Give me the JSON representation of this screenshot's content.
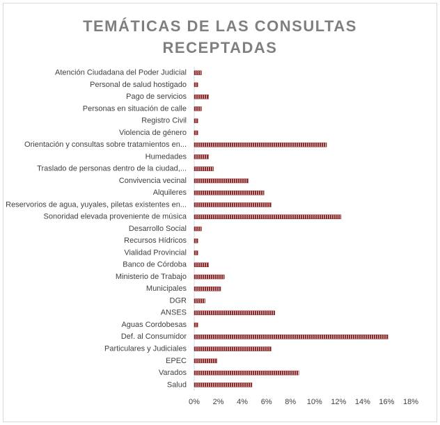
{
  "chart_data": {
    "type": "bar",
    "orientation": "horizontal",
    "title": "TEMÁTICAS DE LAS CONSULTAS RECEPTADAS",
    "categories": [
      "Atención Ciudadana del Poder Judicial",
      "Personal de salud hostigado",
      "Pago de servicios",
      "Personas en situación de calle",
      "Registro Civil",
      "Violencia de género",
      "Orientación y consultas sobre tratamientos en...",
      "Humedades",
      "Traslado de personas dentro de la ciudad,...",
      "Convivencia vecinal",
      "Alquileres",
      "Reservorios de agua, yuyales, piletas existentes en...",
      "Sonoridad elevada proveniente de música",
      "Desarrollo Social",
      "Recursos Hídricos",
      "Vialidad Provincial",
      "Banco de Córdoba",
      "Ministerio de Trabajo",
      "Municipales",
      "DGR",
      "ANSES",
      "Aguas Cordobesas",
      "Def. al Consumidor",
      "Particulares y Judiciales",
      "EPEC",
      "Varados",
      "Salud"
    ],
    "values": [
      0.6,
      0.3,
      1.2,
      0.6,
      0.3,
      0.3,
      11.0,
      1.2,
      1.6,
      4.5,
      5.8,
      6.4,
      12.2,
      0.6,
      0.3,
      0.3,
      1.2,
      2.5,
      2.2,
      0.9,
      6.7,
      0.3,
      16.1,
      6.4,
      1.9,
      8.7,
      4.8
    ],
    "color": "#8b2c2c",
    "xlim": [
      0,
      18
    ],
    "xticks": [
      {
        "value": 0,
        "label": "0%"
      },
      {
        "value": 2,
        "label": "2%"
      },
      {
        "value": 4,
        "label": "4%"
      },
      {
        "value": 6,
        "label": "6%"
      },
      {
        "value": 8,
        "label": "8%"
      },
      {
        "value": 10,
        "label": "10%"
      },
      {
        "value": 12,
        "label": "12%"
      },
      {
        "value": 14,
        "label": "14%"
      },
      {
        "value": 16,
        "label": "16%"
      },
      {
        "value": 18,
        "label": "18%"
      }
    ],
    "grid": false
  }
}
